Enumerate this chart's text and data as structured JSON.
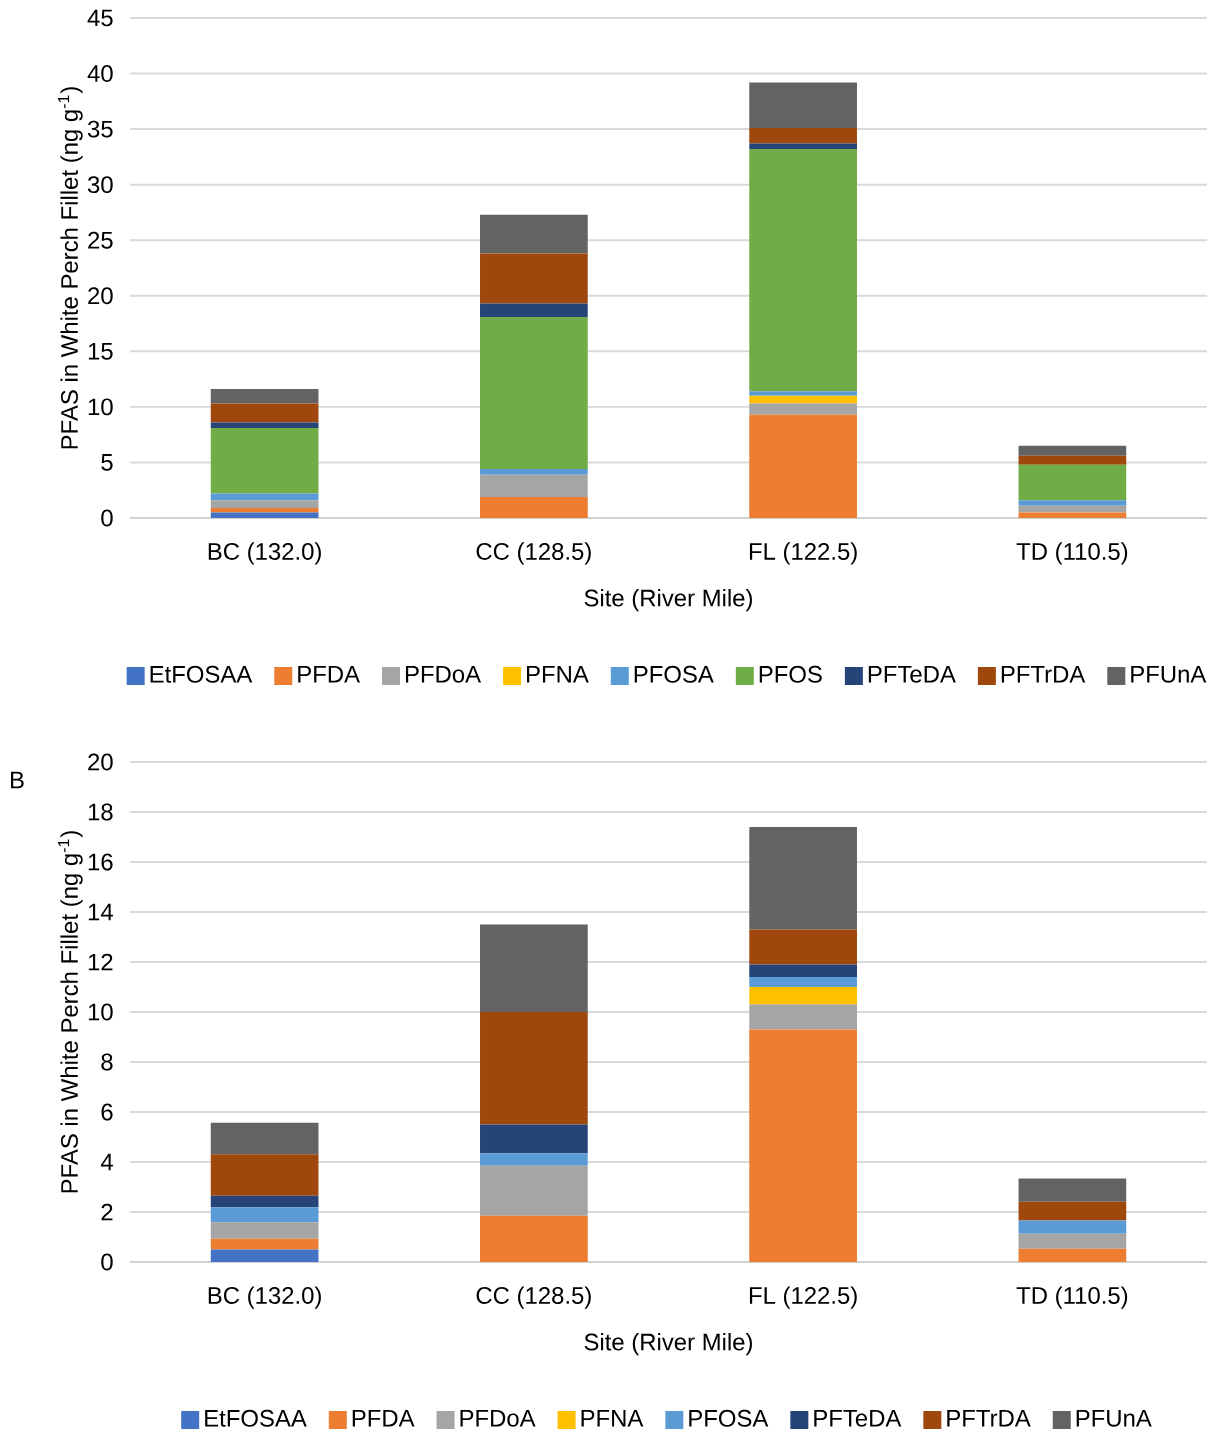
{
  "chart_data": [
    {
      "type": "bar",
      "stacked": true,
      "xlabel": "Site (River Mile)",
      "ylabel": "PFAS in White Perch Fillet (ng g$^{-1}$)",
      "categories": [
        "BC (132.0)",
        "CC (128.5)",
        "FL (122.5)",
        "TD (110.5)"
      ],
      "ylim": [
        0,
        45
      ],
      "yticks": [
        0,
        5,
        10,
        15,
        20,
        25,
        30,
        35,
        40,
        45
      ],
      "grid": "y",
      "legend": "bottom",
      "series": [
        {
          "name": "EtFOSAA",
          "color": "#4472c4",
          "values": [
            0.5,
            null,
            null,
            null
          ]
        },
        {
          "name": "PFDA",
          "color": "#ed7d31",
          "values": [
            0.4,
            1.9,
            9.3,
            0.5
          ]
        },
        {
          "name": "PFDoA",
          "color": "#a5a5a5",
          "values": [
            0.7,
            2.0,
            1.0,
            0.6
          ]
        },
        {
          "name": "PFNA",
          "color": "#ffc000",
          "values": [
            null,
            null,
            0.7,
            null
          ]
        },
        {
          "name": "PFOSA",
          "color": "#5b9bd5",
          "values": [
            0.6,
            0.5,
            0.4,
            0.5
          ]
        },
        {
          "name": "PFOS",
          "color": "#70ad47",
          "values": [
            5.9,
            13.7,
            21.8,
            3.2
          ]
        },
        {
          "name": "PFTeDA",
          "color": "#264478",
          "values": [
            0.5,
            1.2,
            0.5,
            null
          ]
        },
        {
          "name": "PFTrDA",
          "color": "#9e480e",
          "values": [
            1.7,
            4.5,
            1.4,
            0.8
          ]
        },
        {
          "name": "PFUnA",
          "color": "#636363",
          "values": [
            1.3,
            3.5,
            4.1,
            0.9
          ]
        }
      ]
    },
    {
      "type": "bar",
      "stacked": true,
      "xlabel": "Site (River Mile)",
      "ylabel": "PFAS in White Perch Fillet (ng g$^{-1}$)",
      "annotations": [
        "B"
      ],
      "categories": [
        "BC (132.0)",
        "CC (128.5)",
        "FL (122.5)",
        "TD (110.5)"
      ],
      "ylim": [
        0,
        20
      ],
      "yticks": [
        0,
        2,
        4,
        6,
        8,
        10,
        12,
        14,
        16,
        18,
        20
      ],
      "grid": "y",
      "legend": "bottom",
      "series": [
        {
          "name": "EtFOSAA",
          "color": "#4472c4",
          "values": [
            0.5,
            null,
            null,
            null
          ]
        },
        {
          "name": "PFDA",
          "color": "#ed7d31",
          "values": [
            0.43,
            1.85,
            9.3,
            0.53
          ]
        },
        {
          "name": "PFDoA",
          "color": "#a5a5a5",
          "values": [
            0.66,
            2.0,
            1.0,
            0.6
          ]
        },
        {
          "name": "PFNA",
          "color": "#ffc000",
          "values": [
            null,
            null,
            0.7,
            null
          ]
        },
        {
          "name": "PFOSA",
          "color": "#5b9bd5",
          "values": [
            0.6,
            0.5,
            0.4,
            0.53
          ]
        },
        {
          "name": "PFTeDA",
          "color": "#264478",
          "values": [
            0.46,
            1.15,
            0.5,
            null
          ]
        },
        {
          "name": "PFTrDA",
          "color": "#9e480e",
          "values": [
            1.66,
            4.5,
            1.4,
            0.75
          ]
        },
        {
          "name": "PFUnA",
          "color": "#636363",
          "values": [
            1.26,
            3.5,
            4.1,
            0.93
          ]
        }
      ]
    }
  ]
}
